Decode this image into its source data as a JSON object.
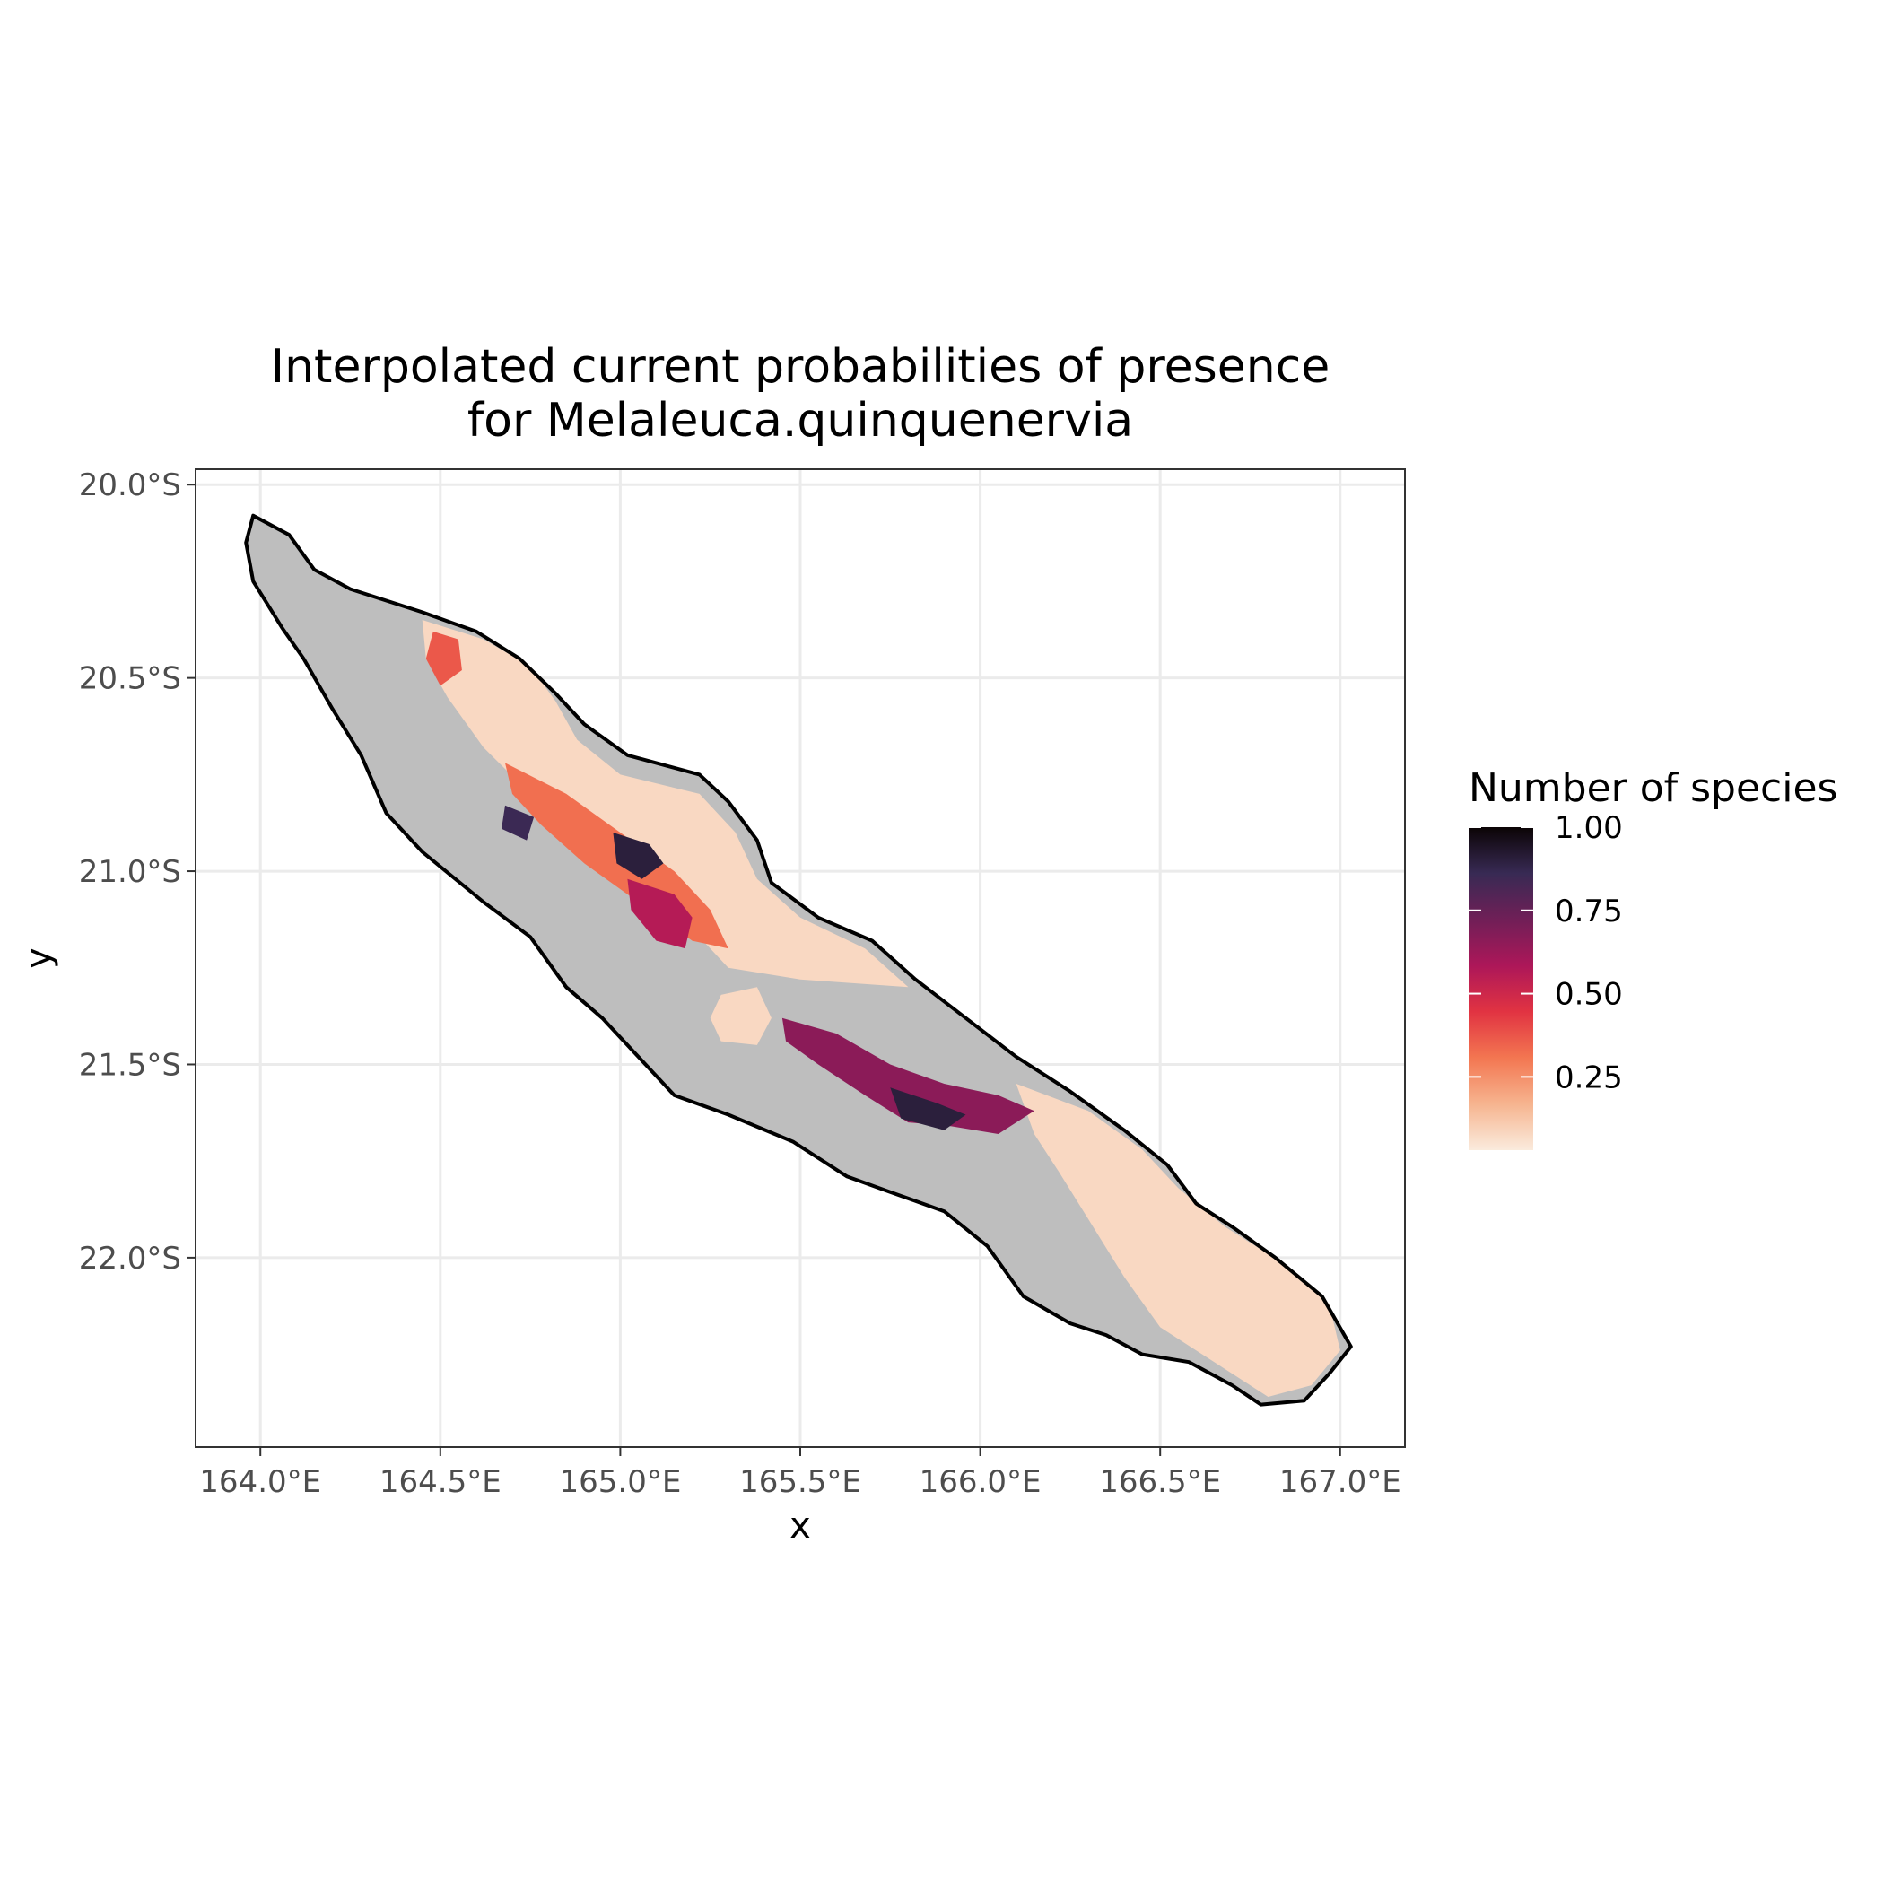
{
  "title": {
    "line1": "Interpolated current probabilities of presence",
    "line2": "for Melaleuca.quinquenervia"
  },
  "axes": {
    "x_label": "x",
    "y_label": "y",
    "x_ticks": [
      "164.0°E",
      "164.5°E",
      "165.0°E",
      "165.5°E",
      "166.0°E",
      "166.5°E",
      "167.0°E"
    ],
    "y_ticks": [
      "20.0°S",
      "20.5°S",
      "21.0°S",
      "21.5°S",
      "22.0°S"
    ]
  },
  "legend": {
    "title": "Number of species",
    "labels": [
      "1.00",
      "0.75",
      "0.50",
      "0.25"
    ],
    "gradient_colors": [
      "#0b0405",
      "#382a54",
      "#701f57",
      "#ad1759",
      "#e13342",
      "#f37651",
      "#f6b48f",
      "#faebdd"
    ]
  },
  "colors": {
    "land_no_data": "#bebebe",
    "coastline": "#000000",
    "low_prob": "#faebdd",
    "grid": "#ebebeb"
  },
  "chart_data": {
    "type": "heatmap",
    "title": "Interpolated current probabilities of presence for Melaleuca.quinquenervia",
    "xlabel": "x",
    "ylabel": "y",
    "xlim": [
      163.82,
      167.18
    ],
    "ylim": [
      -22.49,
      -19.96
    ],
    "x_ticks": [
      164.0,
      164.5,
      165.0,
      165.5,
      166.0,
      166.5,
      167.0
    ],
    "y_ticks": [
      -20.0,
      -20.5,
      -21.0,
      -21.5,
      -22.0
    ],
    "value_range": [
      0,
      1
    ],
    "grid": true,
    "legend_position": "right",
    "coastline": [
      [
        163.98,
        -20.08
      ],
      [
        164.08,
        -20.13
      ],
      [
        164.15,
        -20.22
      ],
      [
        164.25,
        -20.27
      ],
      [
        164.45,
        -20.33
      ],
      [
        164.6,
        -20.38
      ],
      [
        164.72,
        -20.45
      ],
      [
        164.82,
        -20.54
      ],
      [
        164.9,
        -20.62
      ],
      [
        165.02,
        -20.7
      ],
      [
        165.22,
        -20.75
      ],
      [
        165.3,
        -20.82
      ],
      [
        165.38,
        -20.92
      ],
      [
        165.42,
        -21.03
      ],
      [
        165.55,
        -21.12
      ],
      [
        165.7,
        -21.18
      ],
      [
        165.82,
        -21.28
      ],
      [
        165.96,
        -21.38
      ],
      [
        166.1,
        -21.48
      ],
      [
        166.25,
        -21.57
      ],
      [
        166.4,
        -21.67
      ],
      [
        166.52,
        -21.76
      ],
      [
        166.6,
        -21.86
      ],
      [
        166.7,
        -21.92
      ],
      [
        166.82,
        -22.0
      ],
      [
        166.95,
        -22.1
      ],
      [
        167.03,
        -22.23
      ],
      [
        166.97,
        -22.3
      ],
      [
        166.9,
        -22.37
      ],
      [
        166.78,
        -22.38
      ],
      [
        166.7,
        -22.33
      ],
      [
        166.58,
        -22.27
      ],
      [
        166.45,
        -22.25
      ],
      [
        166.35,
        -22.2
      ],
      [
        166.25,
        -22.17
      ],
      [
        166.12,
        -22.1
      ],
      [
        166.02,
        -21.97
      ],
      [
        165.9,
        -21.88
      ],
      [
        165.75,
        -21.83
      ],
      [
        165.63,
        -21.79
      ],
      [
        165.48,
        -21.7
      ],
      [
        165.3,
        -21.63
      ],
      [
        165.15,
        -21.58
      ],
      [
        165.05,
        -21.48
      ],
      [
        164.95,
        -21.38
      ],
      [
        164.85,
        -21.3
      ],
      [
        164.75,
        -21.17
      ],
      [
        164.62,
        -21.08
      ],
      [
        164.45,
        -20.95
      ],
      [
        164.35,
        -20.85
      ],
      [
        164.28,
        -20.7
      ],
      [
        164.2,
        -20.58
      ],
      [
        164.12,
        -20.45
      ],
      [
        164.06,
        -20.37
      ],
      [
        163.98,
        -20.25
      ],
      [
        163.96,
        -20.15
      ]
    ],
    "probability_zones": [
      {
        "value": 0.05,
        "polygon": [
          [
            164.45,
            -20.35
          ],
          [
            164.62,
            -20.4
          ],
          [
            164.75,
            -20.47
          ],
          [
            164.82,
            -20.56
          ],
          [
            164.88,
            -20.66
          ],
          [
            165.0,
            -20.75
          ],
          [
            165.22,
            -20.8
          ],
          [
            165.32,
            -20.9
          ],
          [
            165.38,
            -21.02
          ],
          [
            165.5,
            -21.12
          ],
          [
            165.68,
            -21.2
          ],
          [
            165.8,
            -21.3
          ],
          [
            165.5,
            -21.28
          ],
          [
            165.3,
            -21.25
          ],
          [
            165.2,
            -21.15
          ],
          [
            165.05,
            -21.05
          ],
          [
            164.9,
            -20.95
          ],
          [
            164.75,
            -20.8
          ],
          [
            164.62,
            -20.68
          ],
          [
            164.52,
            -20.55
          ],
          [
            164.46,
            -20.45
          ]
        ]
      },
      {
        "value": 0.05,
        "polygon": [
          [
            166.1,
            -21.55
          ],
          [
            166.3,
            -21.62
          ],
          [
            166.45,
            -21.72
          ],
          [
            166.55,
            -21.82
          ],
          [
            166.68,
            -21.92
          ],
          [
            166.85,
            -22.02
          ],
          [
            166.97,
            -22.12
          ],
          [
            167.0,
            -22.24
          ],
          [
            166.92,
            -22.33
          ],
          [
            166.8,
            -22.36
          ],
          [
            166.7,
            -22.3
          ],
          [
            166.6,
            -22.24
          ],
          [
            166.5,
            -22.18
          ],
          [
            166.4,
            -22.05
          ],
          [
            166.3,
            -21.9
          ],
          [
            166.22,
            -21.78
          ],
          [
            166.15,
            -21.68
          ]
        ]
      },
      {
        "value": 0.05,
        "polygon": [
          [
            165.28,
            -21.32
          ],
          [
            165.38,
            -21.3
          ],
          [
            165.42,
            -21.38
          ],
          [
            165.38,
            -21.45
          ],
          [
            165.28,
            -21.44
          ],
          [
            165.25,
            -21.38
          ]
        ]
      },
      {
        "value": 0.3,
        "polygon": [
          [
            164.68,
            -20.72
          ],
          [
            164.85,
            -20.8
          ],
          [
            165.0,
            -20.9
          ],
          [
            165.15,
            -21.0
          ],
          [
            165.25,
            -21.1
          ],
          [
            165.3,
            -21.2
          ],
          [
            165.2,
            -21.18
          ],
          [
            165.05,
            -21.08
          ],
          [
            164.9,
            -20.98
          ],
          [
            164.78,
            -20.88
          ],
          [
            164.7,
            -20.8
          ]
        ]
      },
      {
        "value": 0.35,
        "polygon": [
          [
            164.48,
            -20.38
          ],
          [
            164.55,
            -20.4
          ],
          [
            164.56,
            -20.48
          ],
          [
            164.5,
            -20.52
          ],
          [
            164.46,
            -20.45
          ]
        ]
      },
      {
        "value": 0.55,
        "polygon": [
          [
            165.02,
            -21.02
          ],
          [
            165.15,
            -21.06
          ],
          [
            165.2,
            -21.12
          ],
          [
            165.18,
            -21.2
          ],
          [
            165.1,
            -21.18
          ],
          [
            165.03,
            -21.1
          ]
        ]
      },
      {
        "value": 0.65,
        "polygon": [
          [
            165.45,
            -21.38
          ],
          [
            165.6,
            -21.42
          ],
          [
            165.75,
            -21.5
          ],
          [
            165.9,
            -21.55
          ],
          [
            166.05,
            -21.58
          ],
          [
            166.15,
            -21.62
          ],
          [
            166.05,
            -21.68
          ],
          [
            165.92,
            -21.66
          ],
          [
            165.8,
            -21.65
          ],
          [
            165.68,
            -21.58
          ],
          [
            165.55,
            -21.5
          ],
          [
            165.46,
            -21.44
          ]
        ]
      },
      {
        "value": 0.9,
        "polygon": [
          [
            164.98,
            -20.9
          ],
          [
            165.08,
            -20.93
          ],
          [
            165.12,
            -20.98
          ],
          [
            165.06,
            -21.02
          ],
          [
            164.99,
            -20.98
          ]
        ]
      },
      {
        "value": 0.9,
        "polygon": [
          [
            165.75,
            -21.56
          ],
          [
            165.88,
            -21.6
          ],
          [
            165.96,
            -21.63
          ],
          [
            165.9,
            -21.67
          ],
          [
            165.78,
            -21.64
          ]
        ]
      },
      {
        "value": 0.85,
        "polygon": [
          [
            164.68,
            -20.83
          ],
          [
            164.76,
            -20.86
          ],
          [
            164.74,
            -20.92
          ],
          [
            164.67,
            -20.89
          ]
        ]
      }
    ]
  }
}
